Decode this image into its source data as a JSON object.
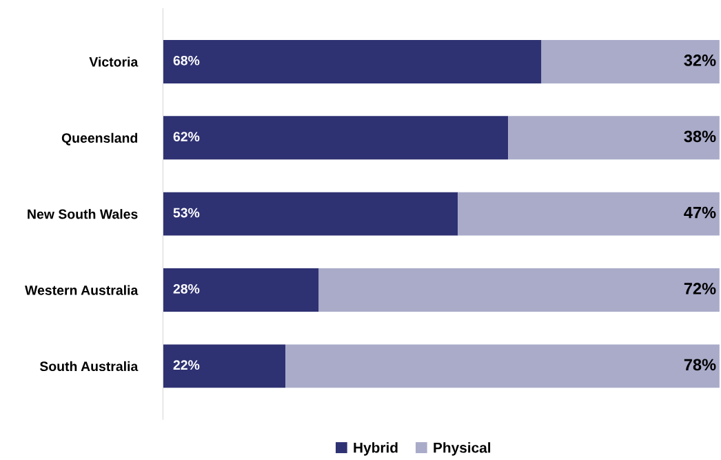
{
  "chart_data": {
    "type": "bar",
    "orientation": "horizontal",
    "stacked": true,
    "categories": [
      "Victoria",
      "Queensland",
      "New South Wales",
      "Western Australia",
      "South Australia"
    ],
    "series": [
      {
        "name": "Hybrid",
        "color": "#2e3172",
        "values": [
          68,
          62,
          53,
          28,
          22
        ],
        "value_labels": [
          "68%",
          "62%",
          "53%",
          "28%",
          "22%"
        ]
      },
      {
        "name": "Physical",
        "color": "#a9abc9",
        "values": [
          32,
          38,
          47,
          72,
          78
        ],
        "value_labels": [
          "32%",
          "38%",
          "47%",
          "72%",
          "78%"
        ]
      }
    ],
    "legend": "bottom",
    "grid": false,
    "tick_labels": "y"
  }
}
